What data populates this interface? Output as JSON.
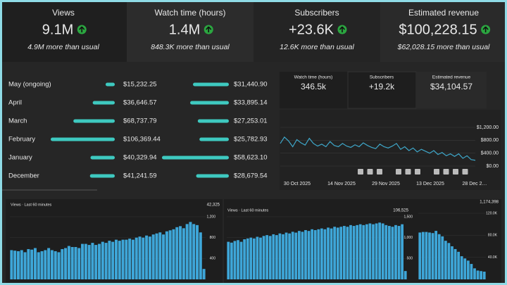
{
  "kpis": [
    {
      "label": "Views",
      "value": "9.1M",
      "note": "4.9M more than usual"
    },
    {
      "label": "Watch time (hours)",
      "value": "1.4M",
      "note": "848.3K more than usual"
    },
    {
      "label": "Subscribers",
      "value": "+23.6K",
      "note": "12.6K more than usual"
    },
    {
      "label": "Estimated revenue",
      "value": "$100,228.15",
      "note": "$62,028.15 more than usual"
    }
  ],
  "monthly": {
    "months": [
      "May (ongoing)",
      "April",
      "March",
      "February",
      "January",
      "December"
    ],
    "left_list": {
      "values": [
        15232.25,
        36646.57,
        68737.79,
        106369.44,
        40329.94,
        41241.59
      ],
      "value_labels": [
        "$15,232.25",
        "$36,646.57",
        "$68,737.79",
        "$106,369.44",
        "$40,329.94",
        "$41,241.59"
      ]
    },
    "right_list": {
      "values": [
        31440.9,
        33895.14,
        27253.01,
        25782.93,
        58623.1,
        28679.54
      ],
      "value_labels": [
        "$31,440.90",
        "$33,895.14",
        "$27,253.01",
        "$25,782.93",
        "$58,623.10",
        "$28,679.54"
      ]
    }
  },
  "mini_stats": [
    {
      "label": "Watch time (hours)",
      "value": "346.5k"
    },
    {
      "label": "Subscribers",
      "value": "+19.2k"
    },
    {
      "label": "Estimated revenue",
      "value": "$34,104.57"
    }
  ],
  "line_chart": {
    "type": "line",
    "color": "#3ea6c8",
    "x_labels": [
      "30 Oct 2025",
      "14 Nov 2025",
      "29 Nov 2025",
      "13 Dec 2025",
      "28 Dec 2…"
    ],
    "values": [
      700,
      900,
      780,
      600,
      820,
      720,
      650,
      860,
      700,
      620,
      680,
      600,
      760,
      640,
      600,
      700,
      620,
      580,
      660,
      600,
      720,
      640,
      580,
      540,
      680,
      600,
      560,
      620,
      700,
      520,
      600,
      480,
      560,
      440,
      520,
      460,
      400,
      480,
      360,
      420,
      320,
      380,
      300,
      380,
      240,
      320,
      200,
      180
    ],
    "ylim": [
      0,
      1200
    ],
    "yticks": [
      {
        "value": 1200,
        "label": "$1,200.00"
      },
      {
        "value": 800,
        "label": "$800.00"
      },
      {
        "value": 400,
        "label": "$400.00"
      },
      {
        "value": 0,
        "label": "$0.00"
      }
    ]
  },
  "bar_charts": [
    {
      "type": "bar",
      "title": "Views · Last 60 minutes",
      "total": "42,325",
      "color": "#3ea6d8",
      "ylim": [
        0,
        1200
      ],
      "yticks": [
        {
          "value": 1200,
          "label": "1,200"
        },
        800,
        400
      ],
      "values": [
        560,
        550,
        540,
        560,
        520,
        580,
        570,
        600,
        520,
        540,
        560,
        600,
        560,
        540,
        520,
        580,
        600,
        640,
        620,
        620,
        600,
        680,
        680,
        660,
        700,
        660,
        680,
        720,
        700,
        740,
        720,
        760,
        740,
        760,
        760,
        780,
        760,
        800,
        820,
        800,
        840,
        820,
        860,
        880,
        900,
        860,
        920,
        940,
        960,
        1000,
        1020,
        980,
        1060,
        1100,
        1060,
        1040,
        900,
        200
      ]
    },
    {
      "type": "bar",
      "title": "Views · Last 60 minutes",
      "total": "106,525",
      "color": "#3ea6d8",
      "ylim": [
        0,
        1500
      ],
      "yticks": [
        {
          "value": 1500,
          "label": "1,500"
        },
        {
          "value": 1000,
          "label": "1,000"
        },
        500
      ],
      "values": [
        900,
        880,
        920,
        940,
        900,
        960,
        980,
        1000,
        980,
        1020,
        1000,
        1040,
        1060,
        1040,
        1080,
        1060,
        1100,
        1080,
        1120,
        1100,
        1140,
        1120,
        1160,
        1140,
        1180,
        1160,
        1200,
        1180,
        1200,
        1220,
        1200,
        1240,
        1220,
        1260,
        1240,
        1260,
        1280,
        1260,
        1300,
        1280,
        1300,
        1320,
        1300,
        1320,
        1340,
        1320,
        1340,
        1360,
        1340,
        1300,
        1280,
        1260,
        1300,
        1280,
        1320,
        200
      ]
    },
    {
      "type": "bar",
      "total": "1,174,398",
      "color": "#3ea6d8",
      "ylim": [
        0,
        120000
      ],
      "yticks": [
        {
          "value": 120000,
          "label": "120.0K"
        },
        {
          "value": 80000,
          "label": "80.0K"
        },
        {
          "value": 40000,
          "label": "40.0K"
        }
      ],
      "values": [
        85000,
        86000,
        86000,
        85000,
        84000,
        88000,
        82000,
        78000,
        70000,
        66000,
        60000,
        55000,
        50000,
        42000,
        38000,
        34000,
        28000,
        20000,
        16000,
        15000,
        14000
      ]
    }
  ]
}
